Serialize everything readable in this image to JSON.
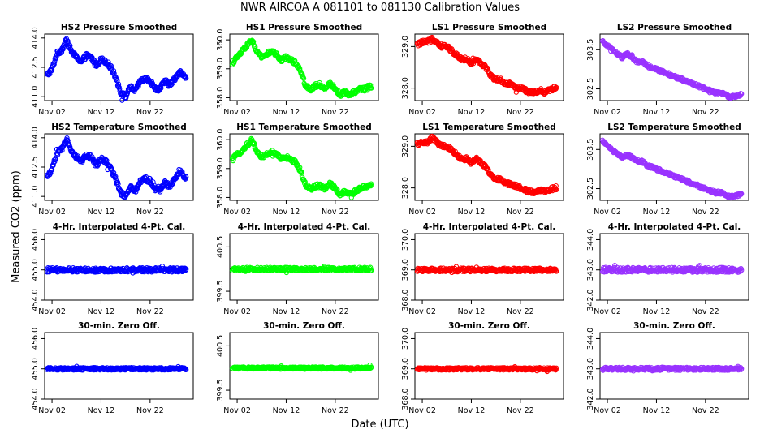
{
  "figure": {
    "title": "NWR    AIRCOA A    081101 to 081130    Calibration Values",
    "xlabel": "Date (UTC)",
    "ylabel": "Measured CO2 (ppm)",
    "x_tick_labels": [
      "Nov 02",
      "Nov 12",
      "Nov 22"
    ],
    "x_ticks_day": [
      2,
      12,
      22
    ],
    "x_range_day": [
      0.5,
      30.8
    ]
  },
  "colors": {
    "HS2": "#0000ff",
    "HS1": "#00ff00",
    "LS1": "#ff0000",
    "LS2": "#9933ff"
  },
  "chart_data": [
    {
      "type": "scatter",
      "title": "HS2 Pressure Smoothed",
      "color_key": "HS2",
      "ylim": [
        410.8,
        414.2
      ],
      "yticks": [
        411.0,
        412.5,
        414.0
      ],
      "ytick_labels": [
        "411.0",
        "412.5",
        "414.0"
      ],
      "noise": 0.12,
      "anchors": [
        [
          1,
          412.1
        ],
        [
          2,
          412.4
        ],
        [
          3,
          413.2
        ],
        [
          4,
          413.4
        ],
        [
          5,
          413.9
        ],
        [
          6,
          413.3
        ],
        [
          7,
          413.0
        ],
        [
          8,
          412.8
        ],
        [
          9,
          413.1
        ],
        [
          10,
          413.0
        ],
        [
          11,
          412.6
        ],
        [
          12,
          412.9
        ],
        [
          13,
          412.8
        ],
        [
          14,
          412.5
        ],
        [
          15,
          412.0
        ],
        [
          16,
          411.2
        ],
        [
          17,
          411.0
        ],
        [
          18,
          411.5
        ],
        [
          19,
          411.3
        ],
        [
          20,
          411.8
        ],
        [
          21,
          411.9
        ],
        [
          22,
          411.8
        ],
        [
          23,
          411.4
        ],
        [
          24,
          411.4
        ],
        [
          25,
          411.8
        ],
        [
          26,
          411.6
        ],
        [
          27,
          411.9
        ],
        [
          28,
          412.3
        ],
        [
          29,
          412.0
        ]
      ]
    },
    {
      "type": "scatter",
      "title": "HS1 Pressure Smoothed",
      "color_key": "HS1",
      "ylim": [
        357.9,
        360.2
      ],
      "yticks": [
        358.0,
        359.0,
        360.0
      ],
      "ytick_labels": [
        "358.0",
        "359.0",
        "360.0"
      ],
      "noise": 0.07,
      "anchors": [
        [
          1,
          359.2
        ],
        [
          2,
          359.4
        ],
        [
          3,
          359.6
        ],
        [
          4,
          359.8
        ],
        [
          5,
          360.0
        ],
        [
          6,
          359.6
        ],
        [
          7,
          359.4
        ],
        [
          8,
          359.5
        ],
        [
          9,
          359.6
        ],
        [
          10,
          359.5
        ],
        [
          11,
          359.3
        ],
        [
          12,
          359.4
        ],
        [
          13,
          359.3
        ],
        [
          14,
          359.2
        ],
        [
          15,
          358.9
        ],
        [
          16,
          358.4
        ],
        [
          17,
          358.3
        ],
        [
          18,
          358.4
        ],
        [
          19,
          358.4
        ],
        [
          20,
          358.3
        ],
        [
          21,
          358.5
        ],
        [
          22,
          358.3
        ],
        [
          23,
          358.1
        ],
        [
          24,
          358.2
        ],
        [
          25,
          358.1
        ],
        [
          26,
          358.2
        ],
        [
          27,
          358.3
        ],
        [
          28,
          358.3
        ],
        [
          29,
          358.4
        ]
      ]
    },
    {
      "type": "scatter",
      "title": "LS1 Pressure Smoothed",
      "color_key": "LS1",
      "ylim": [
        327.7,
        329.3
      ],
      "yticks": [
        328.0,
        329.0
      ],
      "ytick_labels": [
        "328.0",
        "329.0"
      ],
      "noise": 0.05,
      "anchors": [
        [
          1,
          329.05
        ],
        [
          2,
          329.1
        ],
        [
          3,
          329.1
        ],
        [
          4,
          329.2
        ],
        [
          5,
          329.1
        ],
        [
          6,
          329.0
        ],
        [
          7,
          329.0
        ],
        [
          8,
          328.9
        ],
        [
          9,
          328.8
        ],
        [
          10,
          328.7
        ],
        [
          11,
          328.7
        ],
        [
          12,
          328.6
        ],
        [
          13,
          328.7
        ],
        [
          14,
          328.6
        ],
        [
          15,
          328.5
        ],
        [
          16,
          328.3
        ],
        [
          17,
          328.2
        ],
        [
          18,
          328.2
        ],
        [
          19,
          328.1
        ],
        [
          20,
          328.1
        ],
        [
          21,
          328.0
        ],
        [
          22,
          328.0
        ],
        [
          23,
          327.95
        ],
        [
          24,
          327.9
        ],
        [
          25,
          327.9
        ],
        [
          26,
          327.95
        ],
        [
          27,
          327.9
        ],
        [
          28,
          327.95
        ],
        [
          29,
          328.0
        ]
      ]
    },
    {
      "type": "scatter",
      "title": "LS2 Pressure Smoothed",
      "color_key": "LS2",
      "ylim": [
        302.2,
        303.9
      ],
      "yticks": [
        302.5,
        303.5
      ],
      "ytick_labels": [
        "302.5",
        "303.5"
      ],
      "noise": 0.04,
      "anchors": [
        [
          1,
          303.7
        ],
        [
          2,
          303.6
        ],
        [
          3,
          303.5
        ],
        [
          4,
          303.4
        ],
        [
          5,
          303.3
        ],
        [
          6,
          303.4
        ],
        [
          7,
          303.3
        ],
        [
          8,
          303.2
        ],
        [
          9,
          303.2
        ],
        [
          10,
          303.1
        ],
        [
          11,
          303.05
        ],
        [
          12,
          303.0
        ],
        [
          13,
          302.95
        ],
        [
          14,
          302.9
        ],
        [
          15,
          302.85
        ],
        [
          16,
          302.8
        ],
        [
          17,
          302.75
        ],
        [
          18,
          302.7
        ],
        [
          19,
          302.65
        ],
        [
          20,
          302.6
        ],
        [
          21,
          302.55
        ],
        [
          22,
          302.5
        ],
        [
          23,
          302.45
        ],
        [
          24,
          302.4
        ],
        [
          25,
          302.4
        ],
        [
          26,
          302.35
        ],
        [
          27,
          302.3
        ],
        [
          28,
          302.3
        ],
        [
          29,
          302.35
        ]
      ]
    },
    {
      "type": "scatter",
      "title": "HS2 Temperature Smoothed",
      "color_key": "HS2",
      "ylim": [
        410.8,
        414.2
      ],
      "yticks": [
        411.0,
        412.5,
        414.0
      ],
      "ytick_labels": [
        "411.0",
        "412.5",
        "414.0"
      ],
      "noise": 0.12,
      "anchors": [
        [
          1,
          412.0
        ],
        [
          2,
          412.4
        ],
        [
          3,
          413.2
        ],
        [
          4,
          413.4
        ],
        [
          5,
          413.9
        ],
        [
          6,
          413.3
        ],
        [
          7,
          413.0
        ],
        [
          8,
          412.8
        ],
        [
          9,
          413.1
        ],
        [
          10,
          413.0
        ],
        [
          11,
          412.6
        ],
        [
          12,
          412.9
        ],
        [
          13,
          412.8
        ],
        [
          14,
          412.4
        ],
        [
          15,
          411.9
        ],
        [
          16,
          411.2
        ],
        [
          17,
          411.0
        ],
        [
          18,
          411.5
        ],
        [
          19,
          411.3
        ],
        [
          20,
          411.8
        ],
        [
          21,
          411.9
        ],
        [
          22,
          411.8
        ],
        [
          23,
          411.4
        ],
        [
          24,
          411.4
        ],
        [
          25,
          411.7
        ],
        [
          26,
          411.5
        ],
        [
          27,
          411.9
        ],
        [
          28,
          412.3
        ],
        [
          29,
          412.0
        ]
      ]
    },
    {
      "type": "scatter",
      "title": "HS1 Temperature Smoothed",
      "color_key": "HS1",
      "ylim": [
        357.9,
        360.2
      ],
      "yticks": [
        358.0,
        359.0,
        360.0
      ],
      "ytick_labels": [
        "358.0",
        "359.0",
        "360.0"
      ],
      "noise": 0.07,
      "anchors": [
        [
          1,
          359.3
        ],
        [
          2,
          359.5
        ],
        [
          3,
          359.6
        ],
        [
          4,
          359.8
        ],
        [
          5,
          360.0
        ],
        [
          6,
          359.6
        ],
        [
          7,
          359.4
        ],
        [
          8,
          359.5
        ],
        [
          9,
          359.6
        ],
        [
          10,
          359.5
        ],
        [
          11,
          359.3
        ],
        [
          12,
          359.4
        ],
        [
          13,
          359.3
        ],
        [
          14,
          359.2
        ],
        [
          15,
          358.9
        ],
        [
          16,
          358.4
        ],
        [
          17,
          358.3
        ],
        [
          18,
          358.4
        ],
        [
          19,
          358.4
        ],
        [
          20,
          358.3
        ],
        [
          21,
          358.5
        ],
        [
          22,
          358.3
        ],
        [
          23,
          358.1
        ],
        [
          24,
          358.2
        ],
        [
          25,
          358.1
        ],
        [
          26,
          358.2
        ],
        [
          27,
          358.3
        ],
        [
          28,
          358.4
        ],
        [
          29,
          358.4
        ]
      ]
    },
    {
      "type": "scatter",
      "title": "LS1 Temperature Smoothed",
      "color_key": "LS1",
      "ylim": [
        327.7,
        329.3
      ],
      "yticks": [
        328.0,
        329.0
      ],
      "ytick_labels": [
        "328.0",
        "329.0"
      ],
      "noise": 0.05,
      "anchors": [
        [
          1,
          329.05
        ],
        [
          2,
          329.1
        ],
        [
          3,
          329.1
        ],
        [
          4,
          329.2
        ],
        [
          5,
          329.1
        ],
        [
          6,
          329.0
        ],
        [
          7,
          329.0
        ],
        [
          8,
          328.9
        ],
        [
          9,
          328.8
        ],
        [
          10,
          328.7
        ],
        [
          11,
          328.7
        ],
        [
          12,
          328.6
        ],
        [
          13,
          328.7
        ],
        [
          14,
          328.6
        ],
        [
          15,
          328.5
        ],
        [
          16,
          328.3
        ],
        [
          17,
          328.2
        ],
        [
          18,
          328.2
        ],
        [
          19,
          328.1
        ],
        [
          20,
          328.1
        ],
        [
          21,
          328.05
        ],
        [
          22,
          328.0
        ],
        [
          23,
          327.95
        ],
        [
          24,
          327.9
        ],
        [
          25,
          327.9
        ],
        [
          26,
          327.95
        ],
        [
          27,
          327.9
        ],
        [
          28,
          327.95
        ],
        [
          29,
          328.0
        ]
      ]
    },
    {
      "type": "scatter",
      "title": "LS2 Temperature Smoothed",
      "color_key": "LS2",
      "ylim": [
        302.2,
        303.9
      ],
      "yticks": [
        302.5,
        303.5
      ],
      "ytick_labels": [
        "302.5",
        "303.5"
      ],
      "noise": 0.04,
      "anchors": [
        [
          1,
          303.7
        ],
        [
          2,
          303.6
        ],
        [
          3,
          303.5
        ],
        [
          4,
          303.4
        ],
        [
          5,
          303.3
        ],
        [
          6,
          303.35
        ],
        [
          7,
          303.3
        ],
        [
          8,
          303.2
        ],
        [
          9,
          303.2
        ],
        [
          10,
          303.1
        ],
        [
          11,
          303.05
        ],
        [
          12,
          303.0
        ],
        [
          13,
          302.95
        ],
        [
          14,
          302.9
        ],
        [
          15,
          302.85
        ],
        [
          16,
          302.8
        ],
        [
          17,
          302.75
        ],
        [
          18,
          302.7
        ],
        [
          19,
          302.65
        ],
        [
          20,
          302.6
        ],
        [
          21,
          302.55
        ],
        [
          22,
          302.5
        ],
        [
          23,
          302.45
        ],
        [
          24,
          302.4
        ],
        [
          25,
          302.4
        ],
        [
          26,
          302.35
        ],
        [
          27,
          302.3
        ],
        [
          28,
          302.3
        ],
        [
          29,
          302.35
        ]
      ]
    },
    {
      "type": "scatter",
      "title": "4-Hr. Interpolated 4-Pt. Cal.",
      "color_key": "HS2",
      "ylim": [
        454.0,
        456.2
      ],
      "yticks": [
        454.0,
        455.0,
        456.0
      ],
      "ytick_labels": [
        "454.0",
        "455.0",
        "456.0"
      ],
      "noise": 0.07,
      "anchors": [
        [
          1,
          455.0
        ],
        [
          15,
          455.0
        ],
        [
          29,
          455.0
        ]
      ]
    },
    {
      "type": "scatter",
      "title": "4-Hr. Interpolated 4-Pt. Cal.",
      "color_key": "HS1",
      "ylim": [
        399.3,
        400.8
      ],
      "yticks": [
        399.5,
        400.5
      ],
      "ytick_labels": [
        "399.5",
        "400.5"
      ],
      "noise": 0.04,
      "anchors": [
        [
          1,
          400.0
        ],
        [
          15,
          400.0
        ],
        [
          29,
          400.0
        ]
      ]
    },
    {
      "type": "scatter",
      "title": "4-Hr. Interpolated 4-Pt. Cal.",
      "color_key": "LS1",
      "ylim": [
        368.0,
        370.2
      ],
      "yticks": [
        368.0,
        369.0,
        370.0
      ],
      "ytick_labels": [
        "368.0",
        "369.0",
        "370.0"
      ],
      "noise": 0.06,
      "anchors": [
        [
          1,
          369.0
        ],
        [
          15,
          369.0
        ],
        [
          29,
          369.0
        ]
      ]
    },
    {
      "type": "scatter",
      "title": "4-Hr. Interpolated 4-Pt. Cal.",
      "color_key": "LS2",
      "ylim": [
        342.0,
        344.2
      ],
      "yticks": [
        342.0,
        343.0,
        344.0
      ],
      "ytick_labels": [
        "342.0",
        "343.0",
        "344.0"
      ],
      "noise": 0.08,
      "anchors": [
        [
          1,
          343.0
        ],
        [
          15,
          343.0
        ],
        [
          29,
          343.0
        ]
      ]
    },
    {
      "type": "scatter",
      "title": "30-min. Zero Off.",
      "color_key": "HS2",
      "ylim": [
        454.0,
        456.2
      ],
      "yticks": [
        454.0,
        455.0,
        456.0
      ],
      "ytick_labels": [
        "454.0",
        "455.0",
        "456.0"
      ],
      "noise": 0.04,
      "anchors": [
        [
          1,
          455.0
        ],
        [
          15,
          455.0
        ],
        [
          29,
          455.0
        ]
      ]
    },
    {
      "type": "scatter",
      "title": "30-min. Zero Off.",
      "color_key": "HS1",
      "ylim": [
        399.3,
        400.8
      ],
      "yticks": [
        399.5,
        400.5
      ],
      "ytick_labels": [
        "399.5",
        "400.5"
      ],
      "noise": 0.025,
      "anchors": [
        [
          1,
          400.0
        ],
        [
          15,
          400.0
        ],
        [
          29,
          400.0
        ]
      ]
    },
    {
      "type": "scatter",
      "title": "30-min. Zero Off.",
      "color_key": "LS1",
      "ylim": [
        368.0,
        370.2
      ],
      "yticks": [
        368.0,
        369.0,
        370.0
      ],
      "ytick_labels": [
        "368.0",
        "369.0",
        "370.0"
      ],
      "noise": 0.04,
      "anchors": [
        [
          1,
          369.0
        ],
        [
          15,
          369.0
        ],
        [
          29,
          369.0
        ]
      ]
    },
    {
      "type": "scatter",
      "title": "30-min. Zero Off.",
      "color_key": "LS2",
      "ylim": [
        342.0,
        344.2
      ],
      "yticks": [
        342.0,
        343.0,
        344.0
      ],
      "ytick_labels": [
        "342.0",
        "343.0",
        "344.0"
      ],
      "noise": 0.05,
      "anchors": [
        [
          1,
          343.0
        ],
        [
          15,
          343.0
        ],
        [
          29,
          343.0
        ]
      ]
    }
  ]
}
